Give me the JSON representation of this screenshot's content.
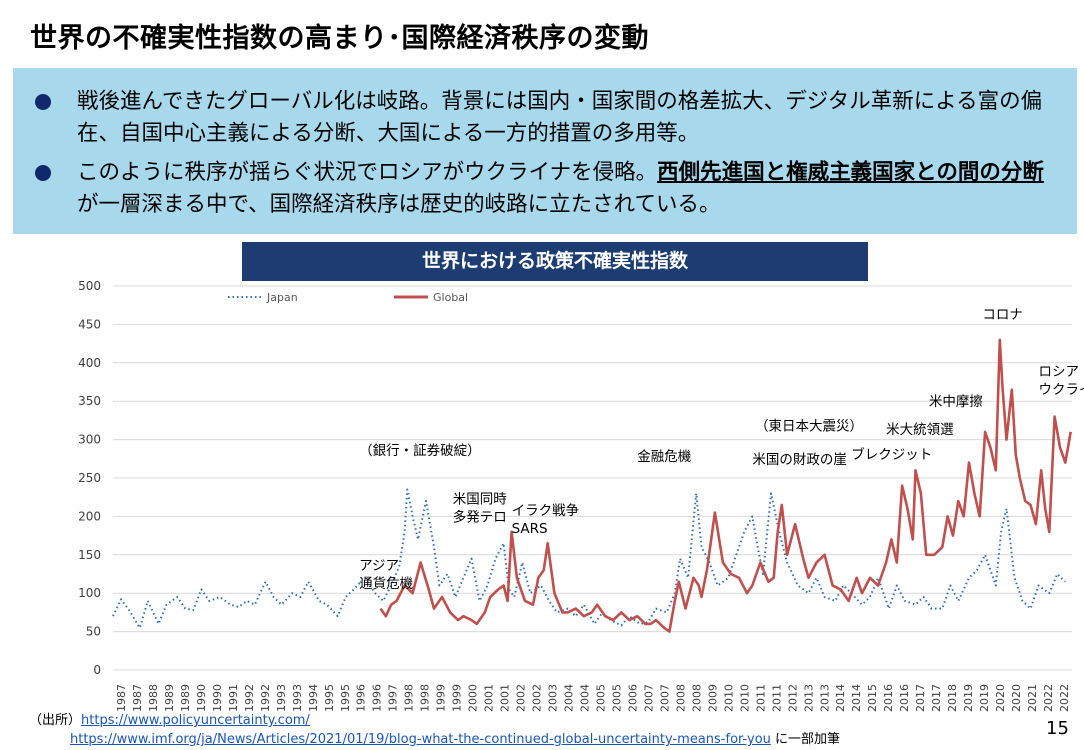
{
  "title": "世界の不確実性指数の高まり･国際経済秩序の変動",
  "bullets": [
    {
      "text": "戦後進んできたグローバル化は岐路。背景には国内・国家間の格差拡大、デジタル革新による富の偏在、自国中心主義による分断、大国による一方的措置の多用等。"
    },
    {
      "pre": "このように秩序が揺らぐ状況でロシアがウクライナを侵略。",
      "bold": "西側先進国と権威主義国家との間の分断",
      "post": "が一層深まる中で、国際経済秩序は歴史的岐路に立たされている。"
    }
  ],
  "chart_data": {
    "type": "line",
    "title": "世界における政策不確実性指数",
    "ylim": [
      0,
      500
    ],
    "yticks": [
      0,
      50,
      100,
      150,
      200,
      250,
      300,
      350,
      400,
      450,
      500
    ],
    "x_start": 1987,
    "x_end": 2022,
    "xticks": [
      "1987",
      "1987",
      "1988",
      "1989",
      "1989",
      "1990",
      "1990",
      "1991",
      "1992",
      "1992",
      "1993",
      "1993",
      "1994",
      "1995",
      "1995",
      "1996",
      "1996",
      "1997",
      "1998",
      "1998",
      "1999",
      "1999",
      "2000",
      "2001",
      "2001",
      "2002",
      "2002",
      "2003",
      "2004",
      "2004",
      "2005",
      "2005",
      "2006",
      "2007",
      "2007",
      "2008",
      "2008",
      "2009",
      "2010",
      "2010",
      "2011",
      "2011",
      "2012",
      "2013",
      "2013",
      "2014",
      "2014",
      "2015",
      "2016",
      "2016",
      "2017",
      "2017",
      "2018",
      "2019",
      "2019",
      "2020",
      "2020",
      "2021",
      "2022",
      "2022"
    ],
    "legend": {
      "placement": "top-left",
      "japan": "Japan",
      "global": "Global"
    },
    "series": [
      {
        "name": "Japan",
        "color": "#2e6fb5",
        "x": [
          1987.0,
          1987.3,
          1987.6,
          1988.0,
          1988.3,
          1988.7,
          1989.0,
          1989.4,
          1989.7,
          1990.0,
          1990.3,
          1990.6,
          1991.0,
          1991.4,
          1991.7,
          1992.0,
          1992.3,
          1992.7,
          1993.0,
          1993.3,
          1993.7,
          1994.0,
          1994.3,
          1994.7,
          1995.0,
          1995.4,
          1995.7,
          1996.0,
          1996.4,
          1996.8,
          1997.1,
          1997.4,
          1997.7,
          1997.9,
          1998.0,
          1998.2,
          1998.4,
          1998.7,
          1999.0,
          1999.2,
          1999.5,
          1999.8,
          2000.1,
          2000.4,
          2000.7,
          2001.0,
          2001.3,
          2001.6,
          2001.8,
          2002.0,
          2002.3,
          2002.6,
          2003.0,
          2003.3,
          2003.6,
          2004.0,
          2004.3,
          2004.6,
          2005.0,
          2005.3,
          2005.6,
          2006.0,
          2006.3,
          2006.7,
          2007.0,
          2007.3,
          2007.7,
          2008.0,
          2008.2,
          2008.5,
          2008.8,
          2009.0,
          2009.3,
          2009.6,
          2010.0,
          2010.3,
          2010.6,
          2010.9,
          2011.1,
          2011.3,
          2011.6,
          2011.9,
          2012.2,
          2012.6,
          2013.0,
          2013.3,
          2013.6,
          2014.0,
          2014.3,
          2014.6,
          2015.0,
          2015.3,
          2015.6,
          2016.0,
          2016.3,
          2016.6,
          2017.0,
          2017.3,
          2017.6,
          2018.0,
          2018.3,
          2018.6,
          2019.0,
          2019.3,
          2019.6,
          2020.0,
          2020.2,
          2020.4,
          2020.7,
          2021.0,
          2021.3,
          2021.6,
          2022.0,
          2022.3,
          2022.6
        ],
        "values": [
          70,
          92,
          78,
          55,
          90,
          60,
          85,
          95,
          80,
          78,
          105,
          90,
          95,
          85,
          82,
          90,
          85,
          115,
          95,
          85,
          100,
          95,
          115,
          90,
          85,
          70,
          95,
          105,
          120,
          100,
          90,
          110,
          135,
          180,
          235,
          200,
          170,
          220,
          160,
          110,
          125,
          95,
          120,
          145,
          90,
          110,
          145,
          165,
          105,
          95,
          140,
          100,
          110,
          90,
          75,
          80,
          70,
          85,
          60,
          75,
          65,
          58,
          70,
          60,
          62,
          80,
          75,
          100,
          145,
          120,
          230,
          160,
          140,
          110,
          120,
          150,
          180,
          200,
          160,
          125,
          230,
          180,
          140,
          110,
          100,
          120,
          95,
          90,
          110,
          100,
          85,
          95,
          120,
          80,
          110,
          90,
          85,
          95,
          80,
          80,
          110,
          90,
          120,
          130,
          150,
          110,
          180,
          210,
          120,
          90,
          80,
          110,
          100,
          125,
          115
        ]
      },
      {
        "name": "Global",
        "color": "#c0504d",
        "x": [
          1997.0,
          1997.2,
          1997.4,
          1997.6,
          1997.9,
          1998.2,
          1998.5,
          1998.8,
          1999.0,
          1999.3,
          1999.6,
          1999.9,
          2000.1,
          2000.4,
          2000.6,
          2000.9,
          2001.1,
          2001.4,
          2001.6,
          2001.75,
          2001.9,
          2002.1,
          2002.4,
          2002.7,
          2002.9,
          2003.1,
          2003.25,
          2003.5,
          2003.8,
          2004.0,
          2004.3,
          2004.6,
          2004.9,
          2005.1,
          2005.4,
          2005.7,
          2006.0,
          2006.3,
          2006.6,
          2006.9,
          2007.1,
          2007.3,
          2007.6,
          2007.8,
          2008.0,
          2008.15,
          2008.4,
          2008.7,
          2008.9,
          2009.0,
          2009.2,
          2009.5,
          2009.8,
          2010.1,
          2010.4,
          2010.7,
          2010.9,
          2011.2,
          2011.5,
          2011.7,
          2011.85,
          2012.0,
          2012.2,
          2012.5,
          2012.8,
          2013.0,
          2013.3,
          2013.6,
          2013.9,
          2014.2,
          2014.5,
          2014.8,
          2015.0,
          2015.3,
          2015.6,
          2015.9,
          2016.1,
          2016.3,
          2016.5,
          2016.7,
          2016.9,
          2017.0,
          2017.2,
          2017.4,
          2017.7,
          2018.0,
          2018.2,
          2018.4,
          2018.6,
          2018.8,
          2019.0,
          2019.2,
          2019.4,
          2019.6,
          2019.8,
          2020.0,
          2020.15,
          2020.25,
          2020.4,
          2020.6,
          2020.75,
          2020.9,
          2021.1,
          2021.3,
          2021.5,
          2021.7,
          2021.85,
          2022.0,
          2022.2,
          2022.4,
          2022.6,
          2022.8
        ],
        "values": [
          80,
          70,
          85,
          90,
          110,
          100,
          140,
          105,
          80,
          95,
          75,
          65,
          70,
          65,
          60,
          75,
          95,
          105,
          110,
          90,
          180,
          120,
          90,
          85,
          120,
          130,
          165,
          100,
          75,
          75,
          80,
          70,
          75,
          85,
          70,
          65,
          75,
          65,
          70,
          60,
          60,
          65,
          55,
          50,
          90,
          115,
          80,
          120,
          110,
          95,
          130,
          205,
          140,
          125,
          120,
          100,
          110,
          140,
          115,
          120,
          180,
          215,
          150,
          190,
          145,
          120,
          140,
          150,
          110,
          105,
          90,
          120,
          100,
          120,
          110,
          140,
          170,
          140,
          240,
          210,
          170,
          260,
          230,
          150,
          150,
          160,
          200,
          175,
          220,
          200,
          270,
          230,
          200,
          310,
          290,
          260,
          430,
          370,
          300,
          365,
          280,
          250,
          220,
          215,
          190,
          260,
          210,
          180,
          330,
          290,
          270,
          310
        ]
      }
    ],
    "annotations": [
      {
        "lines": [
          "アジア",
          "通貨危機"
        ],
        "x": 1996.2,
        "y": 130
      },
      {
        "lines": [
          "（銀行・証券破綻）"
        ],
        "x": 1996.2,
        "y": 280
      },
      {
        "lines": [
          "米国同時",
          "多発テロ"
        ],
        "x": 1999.7,
        "y": 217
      },
      {
        "lines": [
          "イラク戦争",
          "SARS"
        ],
        "x": 2001.9,
        "y": 202
      },
      {
        "lines": [
          "金融危機"
        ],
        "x": 2006.6,
        "y": 272
      },
      {
        "lines": [
          "（東日本大震災）"
        ],
        "x": 2011.0,
        "y": 312
      },
      {
        "lines": [
          "米国の財政の崖"
        ],
        "x": 2010.9,
        "y": 268
      },
      {
        "lines": [
          "ブレクジット"
        ],
        "x": 2014.6,
        "y": 275
      },
      {
        "lines": [
          "米大統領選"
        ],
        "x": 2015.9,
        "y": 307
      },
      {
        "lines": [
          "米中摩擦"
        ],
        "x": 2017.5,
        "y": 344
      },
      {
        "lines": [
          "コロナ"
        ],
        "x": 2019.5,
        "y": 457
      },
      {
        "lines": [
          "ロシア",
          "ウクライナ"
        ],
        "x": 2021.6,
        "y": 383
      }
    ]
  },
  "source": {
    "prefix": "（出所）",
    "url1": "https://www.policyuncertainty.com/",
    "url2": "https://www.imf.org/ja/News/Articles/2021/01/19/blog-what-the-continued-global-uncertainty-means-for-you",
    "suffix": "に一部加筆"
  },
  "page_number": "15"
}
